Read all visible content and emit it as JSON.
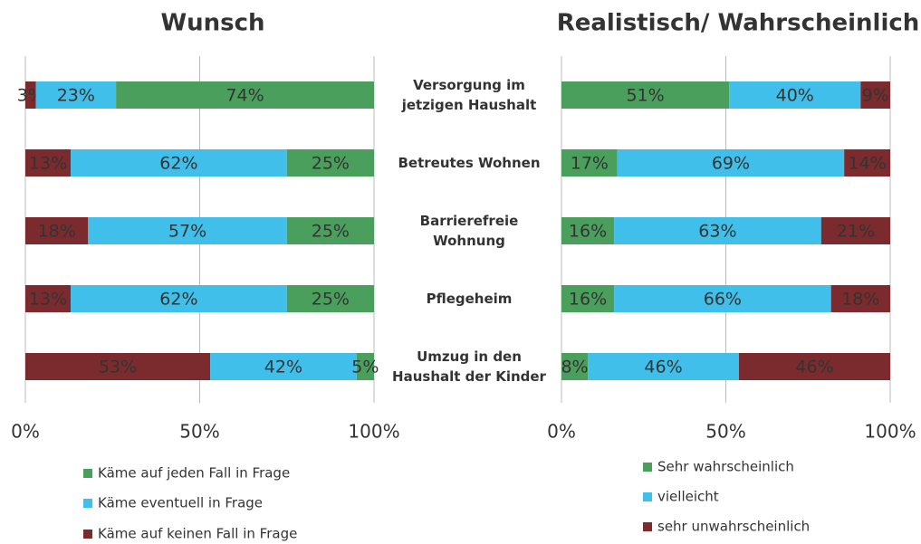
{
  "chart_data": [
    {
      "type": "bar",
      "orientation": "horizontal",
      "stacked": true,
      "title": "Wunsch",
      "categories": [
        "Versorgung im\njetzigen Haushalt",
        "Betreutes Wohnen",
        "Barrierefreie\nWohnung",
        "Pflegeheim",
        "Umzug in den\nHaushalt der Kinder"
      ],
      "series": [
        {
          "name": "Käme auf keinen Fall in Frage",
          "color": "#7b2b2d",
          "values": [
            3,
            13,
            18,
            13,
            53
          ],
          "value_labels": [
            "3%",
            "13%",
            "18%",
            "13%",
            "53%"
          ]
        },
        {
          "name": "Käme eventuell in Frage",
          "color": "#3fbfea",
          "values": [
            23,
            62,
            57,
            62,
            42
          ],
          "value_labels": [
            "23%",
            "62%",
            "57%",
            "62%",
            "42%"
          ]
        },
        {
          "name": "Käme auf jeden Fall in Frage",
          "color": "#4b9f5d",
          "values": [
            74,
            25,
            25,
            25,
            5
          ],
          "value_labels": [
            "74%",
            "25%",
            "25%",
            "25%",
            "5%"
          ]
        }
      ],
      "legend_reversed": true,
      "xlim": [
        0,
        100
      ],
      "xticks": [
        {
          "value": 0,
          "label": "0%"
        },
        {
          "value": 50,
          "label": "50%"
        },
        {
          "value": 100,
          "label": "100%"
        }
      ],
      "grid": true
    },
    {
      "type": "bar",
      "orientation": "horizontal",
      "stacked": true,
      "title": "Realistisch/ Wahrscheinlich",
      "series": [
        {
          "name": "Sehr wahrscheinlich",
          "color": "#4b9f5d",
          "values": [
            51,
            17,
            16,
            16,
            8
          ],
          "value_labels": [
            "51%",
            "17%",
            "16%",
            "16%",
            "8%"
          ]
        },
        {
          "name": "vielleicht",
          "color": "#3fbfea",
          "values": [
            40,
            69,
            63,
            66,
            46
          ],
          "value_labels": [
            "40%",
            "69%",
            "63%",
            "66%",
            "46%"
          ]
        },
        {
          "name": "sehr unwahrscheinlich",
          "color": "#7b2b2d",
          "values": [
            9,
            14,
            21,
            18,
            46
          ],
          "value_labels": [
            "9%",
            "14%",
            "21%",
            "18%",
            "46%"
          ]
        }
      ],
      "xlim": [
        0,
        100
      ],
      "xticks": [
        {
          "value": 0,
          "label": "0%"
        },
        {
          "value": 50,
          "label": "50%"
        },
        {
          "value": 100,
          "label": "100%"
        }
      ],
      "grid": true
    }
  ]
}
